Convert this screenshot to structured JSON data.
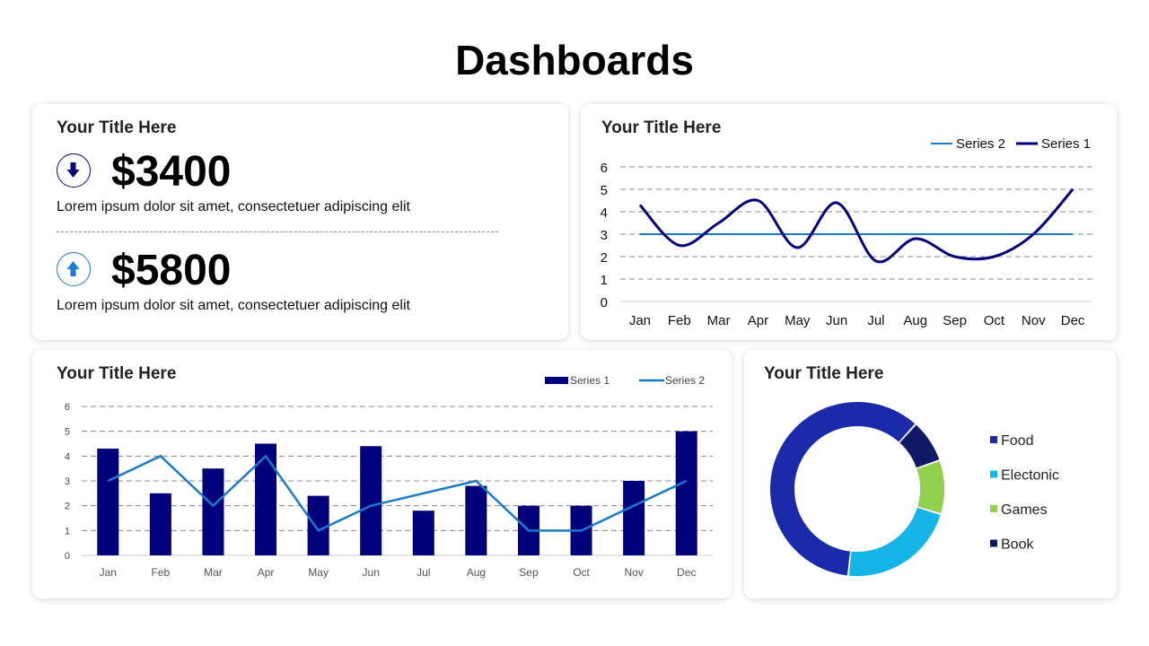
{
  "page": {
    "title": "Dashboards"
  },
  "kpi": {
    "title": "Your Title Here",
    "items": [
      {
        "icon": "arrow-down-icon",
        "value": "$3400",
        "description": "Lorem ipsum dolor sit amet, consectetuer adipiscing elit",
        "color": "#0a0a7a"
      },
      {
        "icon": "arrow-up-icon",
        "value": "$5800",
        "description": "Lorem ipsum dolor sit amet, consectetuer adipiscing elit",
        "color": "#1a7ad4"
      }
    ]
  },
  "colors": {
    "series1": "#00007a",
    "series2": "#1a7ac8",
    "grid": "#888888"
  },
  "chart_data": [
    {
      "type": "line",
      "title": "Your Title Here",
      "categories": [
        "Jan",
        "Feb",
        "Mar",
        "Apr",
        "May",
        "Jun",
        "Jul",
        "Aug",
        "Sep",
        "Oct",
        "Nov",
        "Dec"
      ],
      "series": [
        {
          "name": "Series 2",
          "values": [
            3,
            3,
            3,
            3,
            3,
            3,
            3,
            3,
            3,
            3,
            3,
            3
          ]
        },
        {
          "name": "Series 1",
          "values": [
            4.3,
            2.5,
            3.5,
            4.5,
            2.4,
            4.4,
            1.8,
            2.8,
            2,
            2,
            3,
            5
          ]
        }
      ],
      "yticks": [
        0,
        1,
        2,
        3,
        4,
        5,
        6
      ],
      "ylim": [
        0,
        6
      ],
      "grid": true,
      "legend": "top-right"
    },
    {
      "type": "bar",
      "title": "Your Title Here",
      "categories": [
        "Jan",
        "Feb",
        "Mar",
        "Apr",
        "May",
        "Jun",
        "Jul",
        "Aug",
        "Sep",
        "Oct",
        "Nov",
        "Dec"
      ],
      "series": [
        {
          "name": "Series 1",
          "values": [
            4.3,
            2.5,
            3.5,
            4.5,
            2.4,
            4.4,
            1.8,
            2.8,
            2,
            2,
            3,
            5
          ]
        },
        {
          "name": "Series 2",
          "values": [
            3,
            4,
            2,
            4,
            1,
            2,
            2.5,
            3,
            1,
            1,
            2,
            3
          ]
        }
      ],
      "yticks": [
        0,
        1,
        2,
        3,
        4,
        5,
        6
      ],
      "ylim": [
        0,
        6
      ],
      "grid": true,
      "legend": "top-right"
    },
    {
      "type": "pie",
      "title": "Your Title Here",
      "labels": [
        "Food",
        "Electonic",
        "Games",
        "Book"
      ],
      "values": [
        60,
        22,
        10,
        8
      ],
      "colors": [
        "#1a2aa8",
        "#14b4e6",
        "#92d050",
        "#0f1a66"
      ],
      "legend": "right"
    }
  ]
}
